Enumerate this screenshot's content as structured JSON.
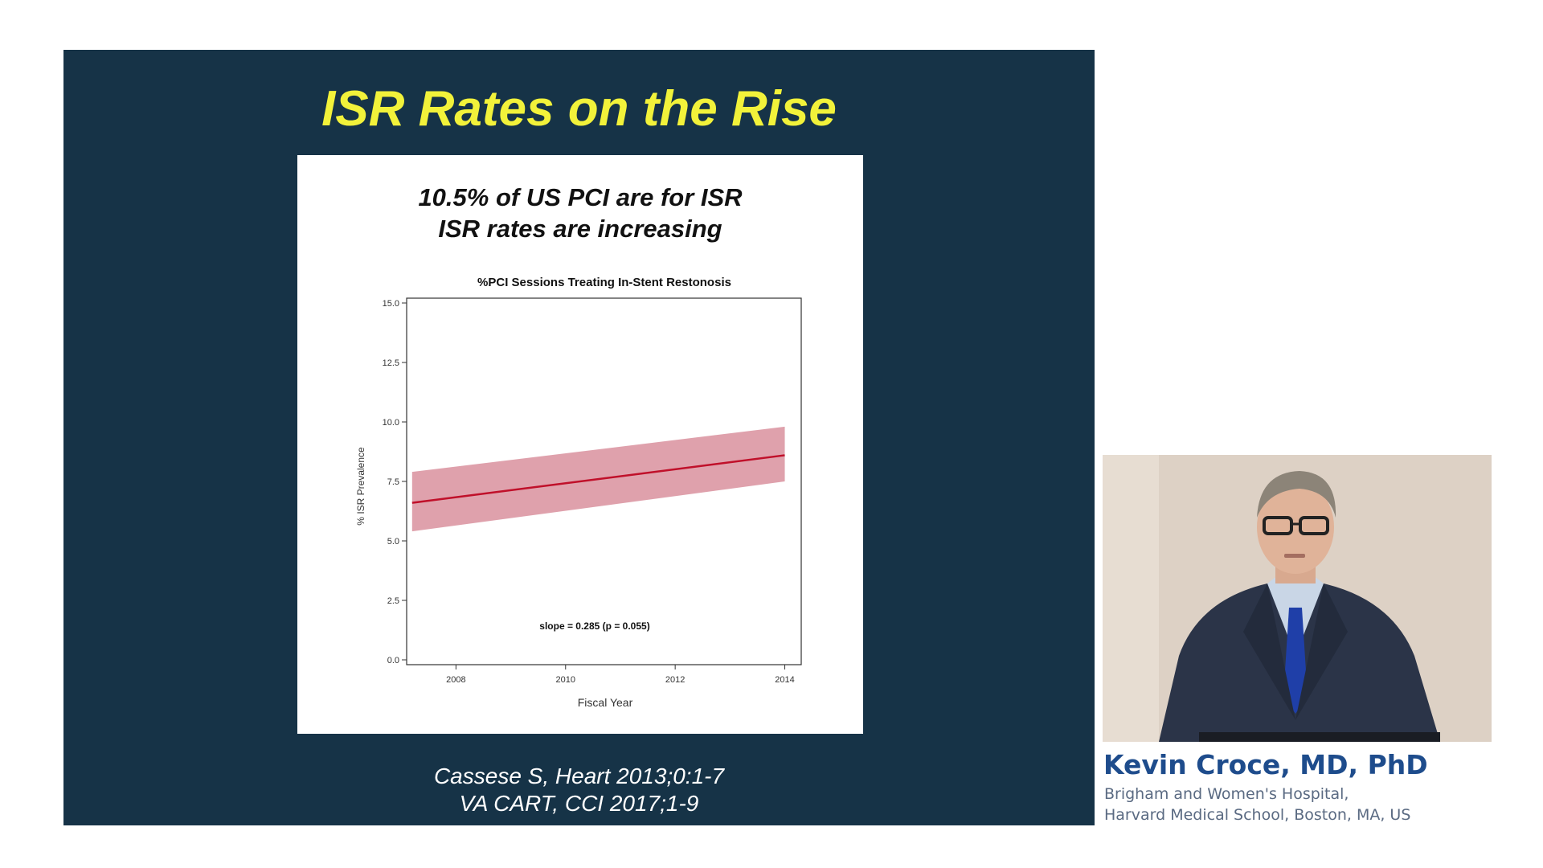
{
  "slide": {
    "title": "ISR Rates on the Rise",
    "headline_1": "10.5% of US PCI are for ISR",
    "headline_2": "ISR rates are increasing",
    "citation_1": "Cassese S, Heart 2013;0:1-7",
    "citation_2": "VA CART, CCI 2017;1-9",
    "background_color": "#163347",
    "title_color": "#f2f23a"
  },
  "chart_data": {
    "type": "line",
    "title": "%PCI Sessions Treating In-Stent Restonosis",
    "xlabel": "Fiscal Year",
    "ylabel": "% ISR Prevalence",
    "xlim": [
      2007.1,
      2014.3
    ],
    "ylim": [
      0,
      15
    ],
    "x_ticks": [
      2008,
      2010,
      2012,
      2014
    ],
    "y_ticks": [
      "0.0",
      "2.5",
      "5.0",
      "7.5",
      "10.0",
      "12.5",
      "15.0"
    ],
    "series": [
      {
        "x": [
          2007.2,
          2014.0
        ],
        "values": [
          6.6,
          8.6
        ],
        "ci_lower": [
          5.4,
          7.5
        ],
        "ci_upper": [
          7.9,
          9.8
        ],
        "color": "#c0102a",
        "band_color": "#d9919e"
      }
    ],
    "annotation": "slope = 0.285 (p = 0.055)",
    "grid": false
  },
  "speaker": {
    "name": "Kevin Croce, MD, PhD",
    "affiliation_1": "Brigham and Women's Hospital,",
    "affiliation_2": "Harvard Medical School, Boston, MA, US",
    "name_color": "#1e4c8c"
  }
}
